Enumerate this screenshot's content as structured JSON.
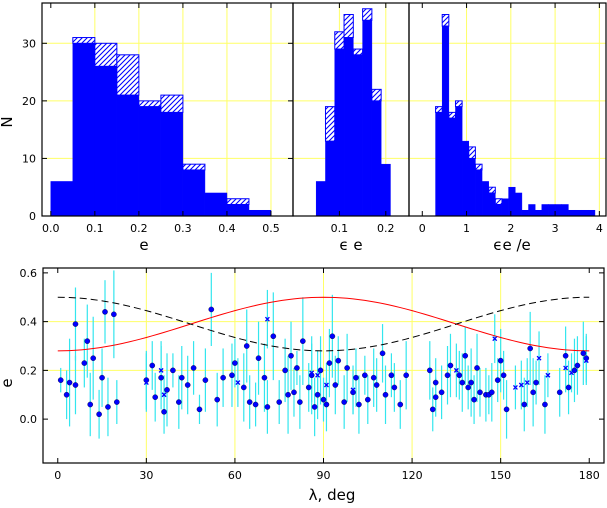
{
  "chart_data": [
    {
      "type": "bar",
      "panel": "top-left",
      "xlabel": "e",
      "ylabel": "N",
      "xlim": [
        -0.02,
        0.55
      ],
      "ylim": [
        0,
        37
      ],
      "xticks": [
        "0.0",
        "0.1",
        "0.2",
        "0.3",
        "0.4",
        "0.5"
      ],
      "yticks": [
        "0",
        "10",
        "20",
        "30"
      ],
      "grid": true,
      "bin_edges": [
        0.0,
        0.05,
        0.1,
        0.15,
        0.2,
        0.25,
        0.3,
        0.35,
        0.4,
        0.45,
        0.5
      ],
      "series": [
        {
          "values": [
            6,
            30,
            26,
            21,
            19,
            18,
            8,
            4,
            2,
            1
          ]
        },
        {
          "values": [
            6,
            31,
            30,
            28,
            20,
            21,
            9,
            4,
            3,
            1
          ]
        }
      ]
    },
    {
      "type": "bar",
      "panel": "top-middle",
      "xlabel": "ϵ e",
      "xlim": [
        0.0,
        0.25
      ],
      "ylim": [
        0,
        37
      ],
      "xticks": [
        "0.1",
        "0.2"
      ],
      "grid": true,
      "bin_edges": [
        0.05,
        0.07,
        0.09,
        0.11,
        0.13,
        0.15,
        0.17,
        0.19,
        0.21
      ],
      "series": [
        {
          "values": [
            6,
            13,
            29,
            31,
            28,
            34,
            20,
            9
          ]
        },
        {
          "values": [
            6,
            19,
            32,
            35,
            29,
            36,
            22,
            9
          ]
        }
      ]
    },
    {
      "type": "bar",
      "panel": "top-right",
      "xlabel": "ϵe /e",
      "xlim": [
        -0.3,
        4.15
      ],
      "ylim": [
        0,
        37
      ],
      "xticks": [
        "0",
        "1",
        "2",
        "3",
        "4"
      ],
      "grid": true,
      "bin_edges": [
        0.15,
        0.3,
        0.45,
        0.6,
        0.75,
        0.9,
        1.05,
        1.2,
        1.35,
        1.5,
        1.65,
        1.8,
        1.95,
        2.1,
        2.25,
        2.4,
        2.55,
        2.7,
        2.85,
        3.0,
        3.15,
        3.3,
        3.45,
        3.6,
        3.75,
        3.9
      ],
      "series": [
        {
          "values": [
            0,
            18,
            33,
            17,
            19,
            13,
            10,
            8,
            6,
            4,
            2,
            3,
            5,
            4,
            1,
            2,
            1,
            2,
            2,
            2,
            2,
            1,
            1,
            1,
            1
          ]
        },
        {
          "values": [
            0,
            19,
            35,
            18,
            20,
            13,
            12,
            9,
            6,
            5,
            3,
            3,
            5,
            4,
            1,
            2,
            1,
            2,
            2,
            2,
            2,
            1,
            1,
            1,
            1
          ]
        }
      ]
    },
    {
      "type": "scatter",
      "panel": "bottom",
      "xlabel": "λ, deg",
      "ylabel": "e",
      "xlim": [
        -5,
        185
      ],
      "ylim": [
        -0.18,
        0.62
      ],
      "xticks": [
        "0",
        "30",
        "60",
        "90",
        "120",
        "150",
        "180"
      ],
      "yticks": [
        "0.0",
        "0.2",
        "0.4",
        "0.6"
      ],
      "grid": true,
      "colors": {
        "fill": "#0000ff",
        "outline": "#000000",
        "grid": "#ffff66",
        "error": "#33e6ee",
        "solid_curve": "#ff0000",
        "dashed_curve": "#000000"
      },
      "curves": [
        {
          "style": "solid",
          "color": "#ff0000",
          "form": "0.39 - 0.11*cos(2*lambda)"
        },
        {
          "style": "dashed",
          "color": "#000000",
          "form": "0.39 + 0.11*cos(2*lambda)"
        }
      ],
      "points_circle": [
        [
          1,
          0.16,
          0.05
        ],
        [
          3,
          0.1,
          0.1
        ],
        [
          4,
          0.15,
          0.18
        ],
        [
          6,
          0.39,
          0.15
        ],
        [
          6,
          0.14,
          0.12
        ],
        [
          9,
          0.23,
          0.1
        ],
        [
          10,
          0.32,
          0.15
        ],
        [
          11,
          0.06,
          0.13
        ],
        [
          12,
          0.25,
          0.17
        ],
        [
          14,
          0.02,
          0.1
        ],
        [
          15,
          0.17,
          0.12
        ],
        [
          16,
          0.44,
          0.13
        ],
        [
          17,
          0.05,
          0.12
        ],
        [
          19,
          0.43,
          0.18
        ],
        [
          20,
          0.07,
          0.09
        ],
        [
          30,
          0.16,
          0.12
        ],
        [
          32,
          0.22,
          0.1
        ],
        [
          33,
          0.09,
          0.1
        ],
        [
          35,
          0.17,
          0.13
        ],
        [
          36,
          0.03,
          0.09
        ],
        [
          37,
          0.12,
          0.15
        ],
        [
          39,
          0.2,
          0.07
        ],
        [
          41,
          0.07,
          0.11
        ],
        [
          42,
          0.17,
          0.13
        ],
        [
          44,
          0.14,
          0.12
        ],
        [
          46,
          0.21,
          0.11
        ],
        [
          48,
          0.04,
          0.06
        ],
        [
          50,
          0.16,
          0.13
        ],
        [
          52,
          0.45,
          0.15
        ],
        [
          54,
          0.08,
          0.11
        ],
        [
          56,
          0.17,
          0.12
        ],
        [
          59,
          0.18,
          0.13
        ],
        [
          60,
          0.23,
          0.1
        ],
        [
          63,
          0.13,
          0.14
        ],
        [
          64,
          0.3,
          0.15
        ],
        [
          65,
          0.07,
          0.11
        ],
        [
          67,
          0.06,
          0.09
        ],
        [
          68,
          0.25,
          0.15
        ],
        [
          70,
          0.17,
          0.14
        ],
        [
          71,
          0.05,
          0.11
        ],
        [
          73,
          0.34,
          0.18
        ],
        [
          75,
          0.07,
          0.09
        ],
        [
          77,
          0.2,
          0.13
        ],
        [
          78,
          0.1,
          0.16
        ],
        [
          79,
          0.26,
          0.14
        ],
        [
          80,
          0.11,
          0.1
        ],
        [
          81,
          0.21,
          0.07
        ],
        [
          82,
          0.07,
          0.11
        ],
        [
          83,
          0.32,
          0.18
        ],
        [
          85,
          0.13,
          0.1
        ],
        [
          86,
          0.18,
          0.16
        ],
        [
          87,
          0.05,
          0.12
        ],
        [
          88,
          0.1,
          0.1
        ],
        [
          89,
          0.2,
          0.14
        ],
        [
          90,
          0.08,
          0.09
        ],
        [
          91,
          0.06,
          0.11
        ],
        [
          92,
          0.23,
          0.14
        ],
        [
          93,
          0.34,
          0.17
        ],
        [
          94,
          0.14,
          0.12
        ],
        [
          95,
          0.24,
          0.1
        ],
        [
          97,
          0.07,
          0.11
        ],
        [
          98,
          0.21,
          0.14
        ],
        [
          100,
          0.11,
          0.09
        ],
        [
          101,
          0.17,
          0.12
        ],
        [
          102,
          0.06,
          0.12
        ],
        [
          104,
          0.18,
          0.08
        ],
        [
          105,
          0.08,
          0.1
        ],
        [
          107,
          0.17,
          0.12
        ],
        [
          108,
          0.14,
          0.11
        ],
        [
          110,
          0.27,
          0.12
        ],
        [
          111,
          0.1,
          0.12
        ],
        [
          113,
          0.18,
          0.09
        ],
        [
          114,
          0.13,
          0.1
        ],
        [
          116,
          0.06,
          0.1
        ],
        [
          118,
          0.18,
          0.14
        ],
        [
          126,
          0.2,
          0.12
        ],
        [
          127,
          0.04,
          0.09
        ],
        [
          128,
          0.09,
          0.08
        ],
        [
          128,
          0.15,
          0.1
        ],
        [
          130,
          0.11,
          0.11
        ],
        [
          132,
          0.18,
          0.12
        ],
        [
          133,
          0.22,
          0.13
        ],
        [
          136,
          0.18,
          0.1
        ],
        [
          137,
          0.15,
          0.12
        ],
        [
          138,
          0.26,
          0.12
        ],
        [
          139,
          0.13,
          0.09
        ],
        [
          140,
          0.15,
          0.14
        ],
        [
          141,
          0.08,
          0.1
        ],
        [
          142,
          0.21,
          0.14
        ],
        [
          143,
          0.11,
          0.1
        ],
        [
          145,
          0.1,
          0.11
        ],
        [
          146,
          0.1,
          0.08
        ],
        [
          147,
          0.11,
          0.12
        ],
        [
          149,
          0.16,
          0.09
        ],
        [
          150,
          0.24,
          0.13
        ],
        [
          151,
          0.18,
          0.1
        ],
        [
          152,
          0.04,
          0.12
        ],
        [
          158,
          0.06,
          0.11
        ],
        [
          160,
          0.29,
          0.15
        ],
        [
          161,
          0.11,
          0.14
        ],
        [
          162,
          0.15,
          0.09
        ],
        [
          165,
          0.06,
          0.12
        ],
        [
          170,
          0.11,
          0.1
        ],
        [
          172,
          0.26,
          0.12
        ],
        [
          173,
          0.13,
          0.11
        ],
        [
          175,
          0.2,
          0.13
        ],
        [
          176,
          0.22,
          0.12
        ],
        [
          178,
          0.27,
          0.13
        ],
        [
          179,
          0.25,
          0.1
        ]
      ],
      "points_cross": [
        [
          30,
          0.15,
          0.12
        ],
        [
          35,
          0.2,
          0.12
        ],
        [
          36,
          0.1,
          0.08
        ],
        [
          61,
          0.15,
          0.1
        ],
        [
          71,
          0.41,
          0.12
        ],
        [
          86,
          0.19,
          0.12
        ],
        [
          88,
          0.18,
          0.1
        ],
        [
          91,
          0.14,
          0.09
        ],
        [
          100,
          0.12,
          0.1
        ],
        [
          135,
          0.2,
          0.11
        ],
        [
          148,
          0.33,
          0.1
        ],
        [
          155,
          0.13,
          0.09
        ],
        [
          157,
          0.14,
          0.1
        ],
        [
          159,
          0.15,
          0.1
        ],
        [
          163,
          0.25,
          0.11
        ],
        [
          166,
          0.18,
          0.09
        ],
        [
          172,
          0.21,
          0.1
        ],
        [
          174,
          0.19,
          0.08
        ],
        [
          179,
          0.24,
          0.1
        ]
      ]
    }
  ]
}
